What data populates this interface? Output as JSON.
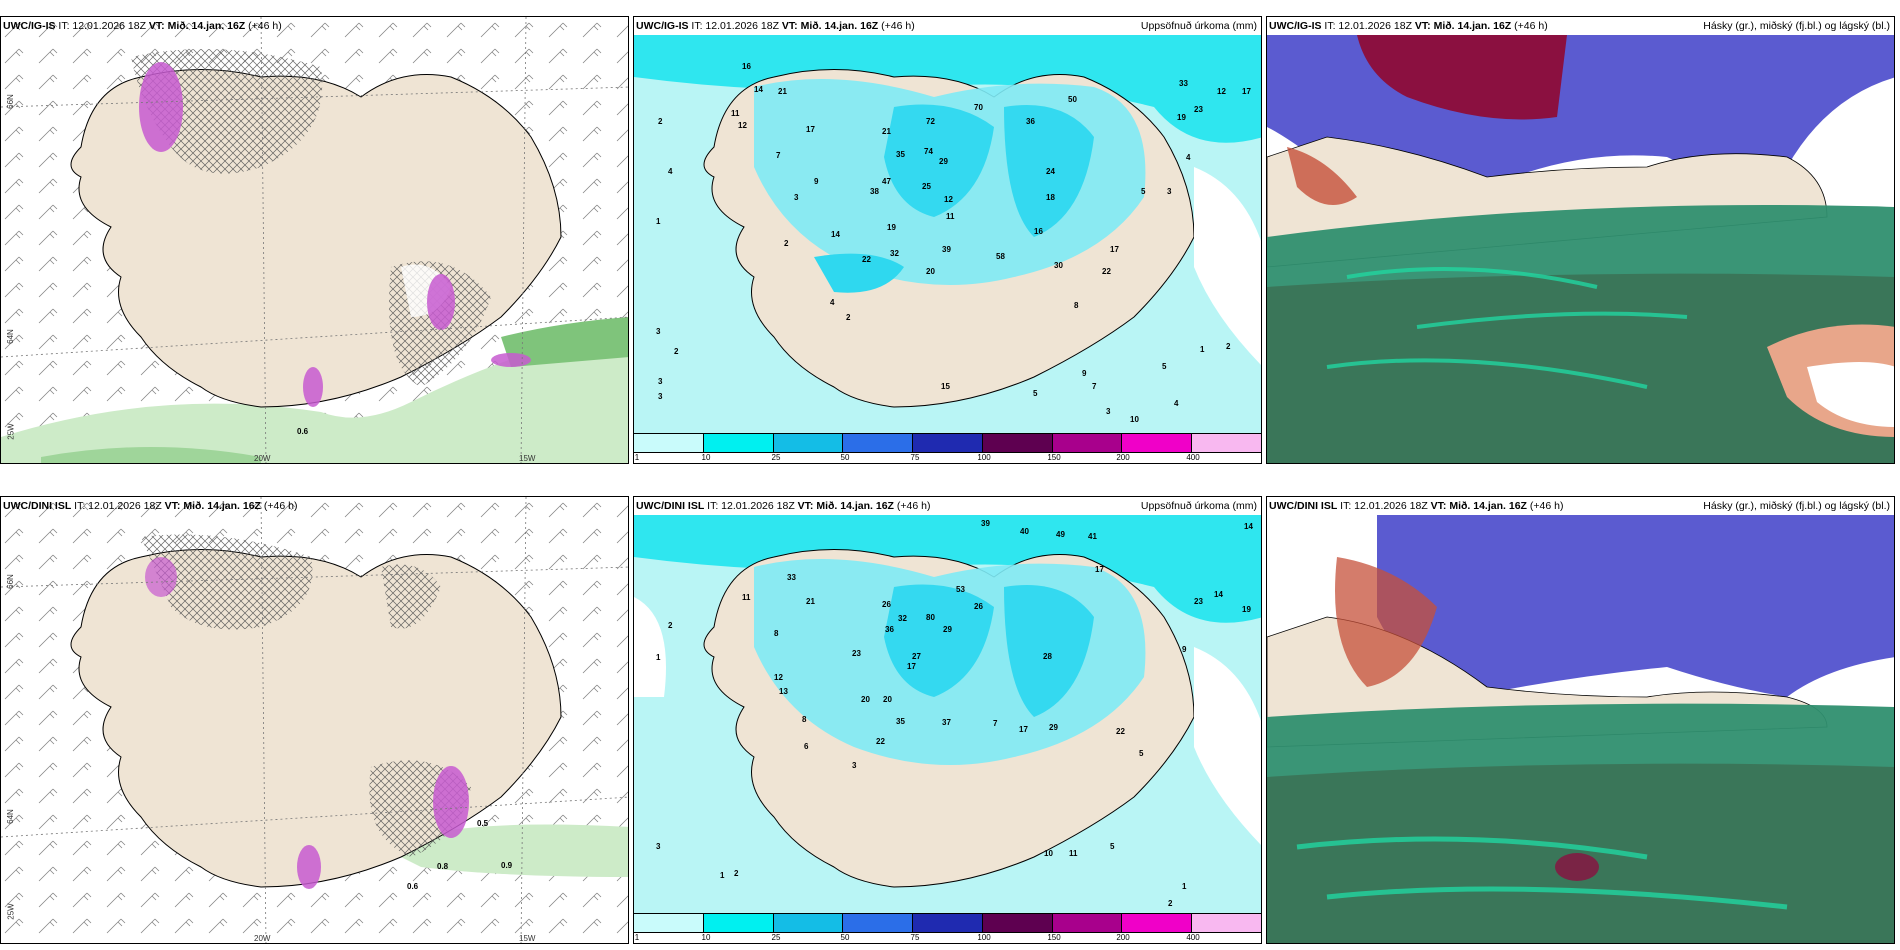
{
  "rows": [
    {
      "model": "UWC/IG-IS",
      "it": "IT: 12.01.2026 18Z",
      "vt_label": "VT:",
      "vt": "Mið. 14.jan. 16Z",
      "lead": "(+46 h)",
      "precip_title": "Uppsöfnuð úrkoma (mm)",
      "cloud_title": "Hásky (gr.), miðský (fj.bl.) og lágský (bl.)",
      "wind_values": [
        "0.6"
      ],
      "lon_labels": [
        "20W",
        "15W"
      ],
      "lat_labels": [
        "66N",
        "64N",
        "25W"
      ],
      "precip_numbers": [
        "16",
        "14",
        "21",
        "11",
        "12",
        "17",
        "2",
        "4",
        "1",
        "7",
        "3",
        "9",
        "2",
        "14",
        "47",
        "35",
        "21",
        "72",
        "70",
        "50",
        "74",
        "25",
        "38",
        "19",
        "29",
        "12",
        "11",
        "39",
        "22",
        "32",
        "20",
        "58",
        "30",
        "17",
        "22",
        "2",
        "4",
        "3",
        "2",
        "3",
        "3",
        "1",
        "5",
        "7",
        "9",
        "10",
        "3",
        "5",
        "2",
        "4",
        "8",
        "15",
        "18",
        "24",
        "16",
        "36",
        "33",
        "23",
        "12",
        "17",
        "19",
        "5",
        "3",
        "4"
      ]
    },
    {
      "model": "UWC/DINI ISL",
      "it": "IT: 12.01.2026 18Z",
      "vt_label": "VT:",
      "vt": "Mið. 14.jan. 16Z",
      "lead": "(+46 h)",
      "precip_title": "Uppsöfnuð úrkoma (mm)",
      "cloud_title": "Hásky (gr.), miðský (fj.bl.) og lágský (bl.)",
      "wind_values": [
        "0.6",
        "0.8",
        "0.9",
        "0.5"
      ],
      "lon_labels": [
        "20W",
        "15W"
      ],
      "lat_labels": [
        "66N",
        "64N",
        "25W"
      ],
      "precip_numbers": [
        "39",
        "40",
        "49",
        "41",
        "14",
        "33",
        "11",
        "8",
        "1",
        "2",
        "21",
        "26",
        "53",
        "17",
        "36",
        "32",
        "27",
        "80",
        "29",
        "20",
        "26",
        "20",
        "35",
        "37",
        "23",
        "28",
        "17",
        "29",
        "17",
        "22",
        "3",
        "7",
        "10",
        "11",
        "5",
        "2",
        "1",
        "3",
        "12",
        "13",
        "8",
        "6",
        "5",
        "9",
        "23",
        "14",
        "19",
        "22",
        "1",
        "2"
      ]
    }
  ],
  "colorbar": {
    "ticks": [
      "1",
      "10",
      "25",
      "50",
      "75",
      "100",
      "150",
      "200",
      "400"
    ],
    "colors": [
      "#c9fbfb",
      "#00f0f0",
      "#14bde6",
      "#2b6ee8",
      "#1f2ab0",
      "#5e0050",
      "#a8008c",
      "#f000c8",
      "#f8b8f0"
    ]
  },
  "colors": {
    "land": "#efe4d4",
    "precip_light": "#b9f5f5",
    "precip_mid": "#2fd8ef",
    "cloud_low": "#2f8f6f",
    "cloud_mid": "#5b5bd0",
    "cloud_high": "#8b1040"
  }
}
